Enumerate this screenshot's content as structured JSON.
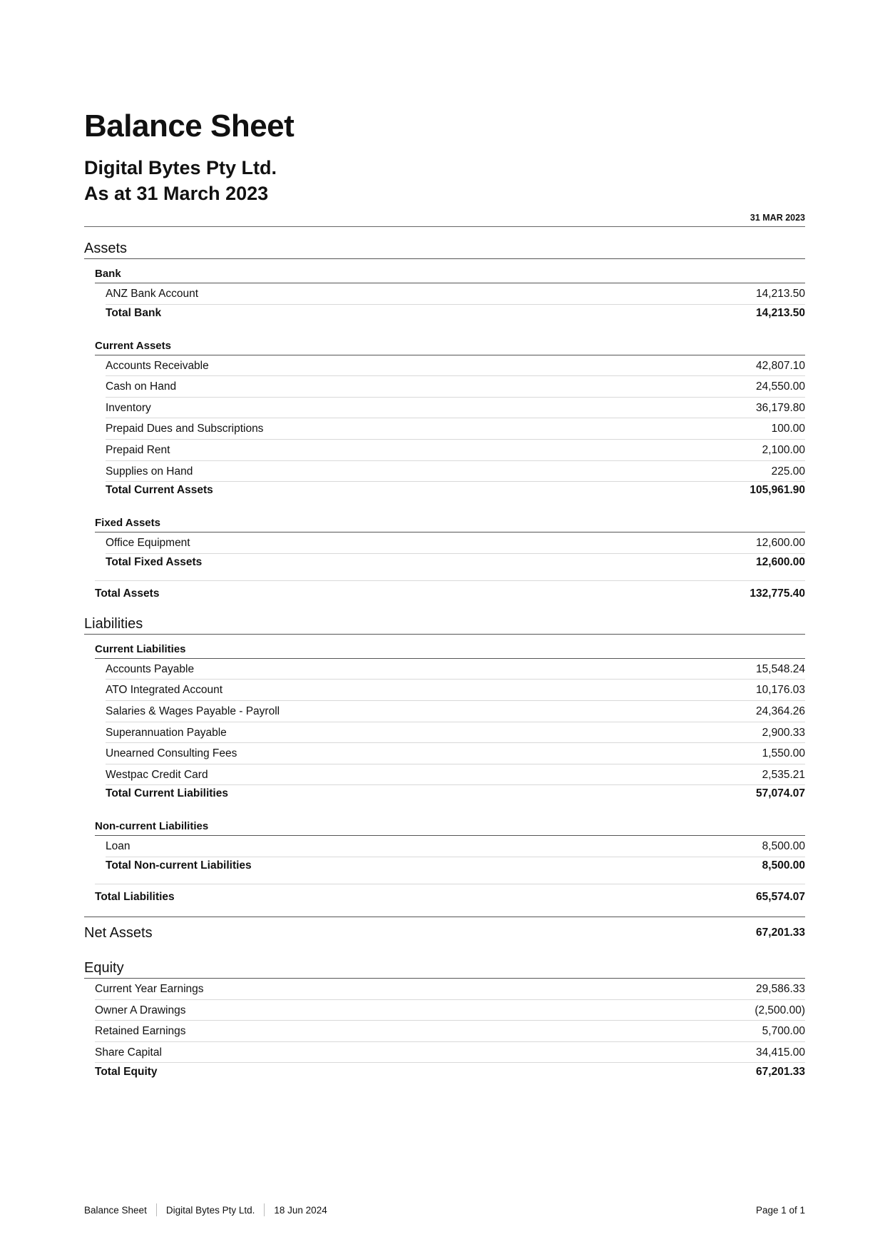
{
  "header": {
    "title": "Balance Sheet",
    "company": "Digital Bytes Pty Ltd.",
    "as_at": "As at 31 March 2023",
    "column": "31 MAR 2023"
  },
  "assets": {
    "heading": "Assets",
    "groups": [
      {
        "label": "Bank",
        "items": [
          [
            "ANZ Bank Account",
            "14,213.50"
          ]
        ],
        "total": [
          "Total Bank",
          "14,213.50"
        ]
      },
      {
        "label": "Current Assets",
        "items": [
          [
            "Accounts Receivable",
            "42,807.10"
          ],
          [
            "Cash on Hand",
            "24,550.00"
          ],
          [
            "Inventory",
            "36,179.80"
          ],
          [
            "Prepaid Dues and Subscriptions",
            "100.00"
          ],
          [
            "Prepaid Rent",
            "2,100.00"
          ],
          [
            "Supplies on Hand",
            "225.00"
          ]
        ],
        "total": [
          "Total Current Assets",
          "105,961.90"
        ]
      },
      {
        "label": "Fixed Assets",
        "items": [
          [
            "Office Equipment",
            "12,600.00"
          ]
        ],
        "total": [
          "Total Fixed Assets",
          "12,600.00"
        ]
      }
    ],
    "total": [
      "Total Assets",
      "132,775.40"
    ]
  },
  "liabilities": {
    "heading": "Liabilities",
    "groups": [
      {
        "label": "Current Liabilities",
        "items": [
          [
            "Accounts Payable",
            "15,548.24"
          ],
          [
            "ATO Integrated Account",
            "10,176.03"
          ],
          [
            "Salaries & Wages Payable - Payroll",
            "24,364.26"
          ],
          [
            "Superannuation Payable",
            "2,900.33"
          ],
          [
            "Unearned Consulting Fees",
            "1,550.00"
          ],
          [
            "Westpac Credit Card",
            "2,535.21"
          ]
        ],
        "total": [
          "Total Current Liabilities",
          "57,074.07"
        ]
      },
      {
        "label": "Non-current Liabilities",
        "items": [
          [
            "Loan",
            "8,500.00"
          ]
        ],
        "total": [
          "Total Non-current Liabilities",
          "8,500.00"
        ]
      }
    ],
    "total": [
      "Total Liabilities",
      "65,574.07"
    ]
  },
  "net_assets": [
    "Net Assets",
    "67,201.33"
  ],
  "equity": {
    "heading": "Equity",
    "items": [
      [
        "Current Year Earnings",
        "29,586.33"
      ],
      [
        "Owner A Drawings",
        "(2,500.00)"
      ],
      [
        "Retained Earnings",
        "5,700.00"
      ],
      [
        "Share Capital",
        "34,415.00"
      ]
    ],
    "total": [
      "Total Equity",
      "67,201.33"
    ]
  },
  "footer": {
    "report": "Balance Sheet",
    "company": "Digital Bytes Pty Ltd.",
    "date": "18 Jun 2024",
    "page": "Page 1 of 1"
  }
}
